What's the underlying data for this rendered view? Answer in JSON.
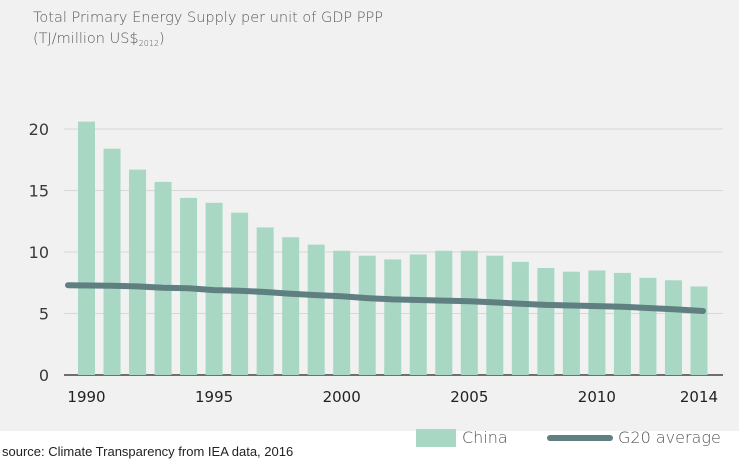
{
  "title": "Total Primary Energy Supply per unit of GDP PPP",
  "unit_prefix": "(TJ/million US$",
  "unit_sub": "2012",
  "unit_suffix": ")",
  "source": "source: Climate Transparency from IEA data, 2016",
  "colors": {
    "china": "#a8d8c4",
    "g20": "#5f7f80",
    "grid": "#d7d7d7",
    "panel": "#f1f1f1"
  },
  "chart_data": {
    "type": "bar",
    "title": "Total Primary Energy Supply per unit of GDP PPP",
    "ylabel": "(TJ/million US$2012)",
    "xlabel": "",
    "ylim": [
      0,
      20
    ],
    "yticks": [
      0,
      5,
      10,
      15,
      20
    ],
    "xticks": [
      "1990",
      "1995",
      "2000",
      "2005",
      "2010",
      "2014"
    ],
    "grid": true,
    "legend_position": "bottom-right",
    "categories": [
      1990,
      1991,
      1992,
      1993,
      1994,
      1995,
      1996,
      1997,
      1998,
      1999,
      2000,
      2001,
      2002,
      2003,
      2004,
      2005,
      2006,
      2007,
      2008,
      2009,
      2010,
      2011,
      2012,
      2013,
      2014
    ],
    "series": [
      {
        "name": "China",
        "type": "bar",
        "values": [
          20.6,
          18.4,
          16.7,
          15.7,
          14.4,
          14.0,
          13.2,
          12.0,
          11.2,
          10.6,
          10.1,
          9.7,
          9.4,
          9.8,
          10.1,
          10.1,
          9.7,
          9.2,
          8.7,
          8.4,
          8.5,
          8.3,
          7.9,
          7.7,
          7.2
        ]
      },
      {
        "name": "G20 average",
        "type": "line",
        "values": [
          7.3,
          7.25,
          7.2,
          7.1,
          7.05,
          6.9,
          6.85,
          6.75,
          6.6,
          6.5,
          6.4,
          6.25,
          6.15,
          6.1,
          6.05,
          6.0,
          5.9,
          5.8,
          5.7,
          5.65,
          5.6,
          5.55,
          5.45,
          5.35,
          5.2
        ]
      }
    ]
  }
}
